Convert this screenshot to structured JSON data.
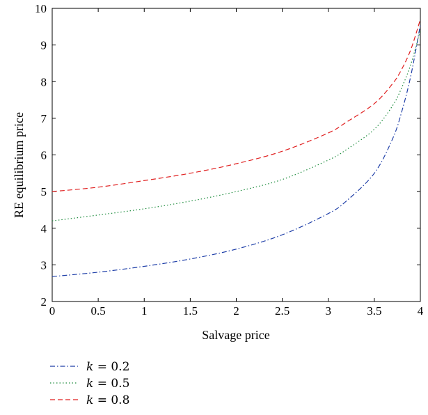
{
  "chart_data": {
    "type": "line",
    "title": "",
    "xlabel": "Salvage price",
    "ylabel": "RE equilibrium price",
    "xlim": [
      0,
      4
    ],
    "ylim": [
      2,
      10
    ],
    "xticks": [
      0,
      0.5,
      1,
      1.5,
      2,
      2.5,
      3,
      3.5,
      4
    ],
    "xtick_labels": [
      "0",
      "0.5",
      "1",
      "1.5",
      "2",
      "2.5",
      "3",
      "3.5",
      "4"
    ],
    "yticks": [
      2,
      3,
      4,
      5,
      6,
      7,
      8,
      9,
      10
    ],
    "ytick_labels": [
      "2",
      "3",
      "4",
      "5",
      "6",
      "7",
      "8",
      "9",
      "10"
    ],
    "grid": false,
    "legend_position": "below-left",
    "x": [
      0,
      0.5,
      1,
      1.5,
      2,
      2.5,
      3,
      3.2,
      3.5,
      3.7,
      3.8,
      3.9,
      4
    ],
    "series": [
      {
        "name": "k = 0.2",
        "legend_var": "k",
        "legend_rest": " = 0.2",
        "color": "#1f3fa8",
        "dash": "dashdot",
        "values": [
          2.68,
          2.8,
          2.96,
          3.16,
          3.43,
          3.82,
          4.4,
          4.75,
          5.5,
          6.45,
          7.2,
          8.2,
          9.55
        ]
      },
      {
        "name": "k = 0.5",
        "legend_var": "k",
        "legend_rest": " = 0.5",
        "color": "#1a8a3a",
        "dash": "dotted",
        "values": [
          4.2,
          4.36,
          4.53,
          4.74,
          5.0,
          5.33,
          5.86,
          6.15,
          6.7,
          7.35,
          7.85,
          8.5,
          9.4
        ]
      },
      {
        "name": "k = 0.8",
        "legend_var": "k",
        "legend_rest": " = 0.8",
        "color": "#e02020",
        "dash": "dashed",
        "values": [
          5.0,
          5.12,
          5.3,
          5.5,
          5.76,
          6.1,
          6.6,
          6.9,
          7.4,
          7.95,
          8.35,
          8.9,
          9.7
        ]
      }
    ]
  }
}
